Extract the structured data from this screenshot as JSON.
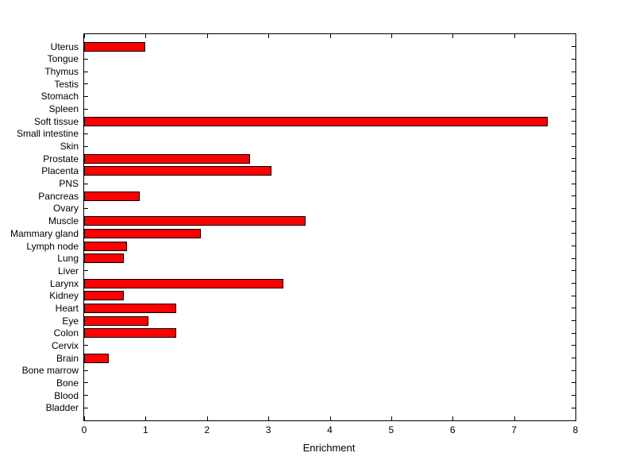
{
  "figure": {
    "background": "#ffffff",
    "axis_color": "#000000"
  },
  "chart_data": {
    "type": "bar",
    "orientation": "horizontal",
    "title": "",
    "xlabel": "Enrichment",
    "ylabel": "",
    "xlim": [
      0,
      8
    ],
    "xticks": [
      0,
      1,
      2,
      3,
      4,
      5,
      6,
      7,
      8
    ],
    "xtick_labels": [
      "0",
      "1",
      "2",
      "3",
      "4",
      "5",
      "6",
      "7",
      "8"
    ],
    "grid": false,
    "legend": "none",
    "bar_color": "#ff0000",
    "bar_edge_color": "#000000",
    "categories": [
      "Uterus",
      "Tongue",
      "Thymus",
      "Testis",
      "Stomach",
      "Spleen",
      "Soft tissue",
      "Small intestine",
      "Skin",
      "Prostate",
      "Placenta",
      "PNS",
      "Pancreas",
      "Ovary",
      "Muscle",
      "Mammary gland",
      "Lymph node",
      "Lung",
      "Liver",
      "Larynx",
      "Kidney",
      "Heart",
      "Eye",
      "Colon",
      "Cervix",
      "Brain",
      "Bone marrow",
      "Bone",
      "Blood",
      "Bladder"
    ],
    "values": [
      1.0,
      0,
      0,
      0,
      0,
      0,
      7.55,
      0,
      0,
      2.7,
      3.05,
      0,
      0.9,
      0,
      3.6,
      1.9,
      0.7,
      0.65,
      0,
      3.25,
      0.65,
      1.5,
      1.05,
      1.5,
      0,
      0.4,
      0,
      0,
      0,
      0
    ]
  }
}
